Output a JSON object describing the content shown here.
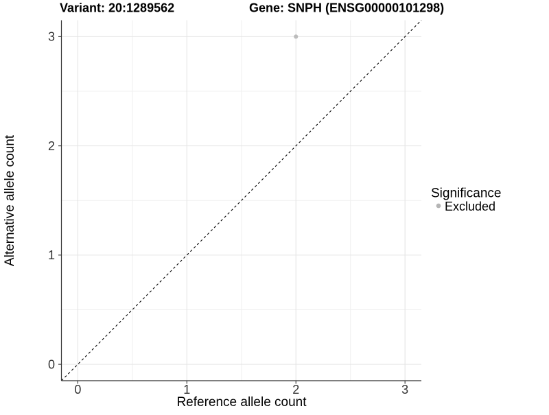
{
  "figure": {
    "title_left": "Variant: 20:1289562",
    "title_right": "Gene: SNPH (ENSG00000101298)"
  },
  "chart_data": {
    "type": "scatter",
    "title": "Variant: 20:1289562        Gene: SNPH (ENSG00000101298)",
    "xlabel": "Reference allele count",
    "ylabel": "Alternative allele count",
    "xlim": [
      -0.15,
      3.15
    ],
    "ylim": [
      -0.15,
      3.15
    ],
    "x_ticks": [
      0,
      1,
      2,
      3
    ],
    "y_ticks": [
      0,
      1,
      2,
      3
    ],
    "x_minor_ticks": [
      0.5,
      1.5,
      2.5
    ],
    "y_minor_ticks": [
      0.5,
      1.5,
      2.5
    ],
    "grid": "major and minor gridlines on white panel",
    "points": [
      {
        "x": 2,
        "y": 3,
        "significance": "Excluded"
      }
    ],
    "reference_line": {
      "type": "identity y=x across panel",
      "style": "dashed",
      "color": "#000000"
    },
    "legend": {
      "title": "Significance",
      "position": "right",
      "entries": [
        {
          "label": "Excluded",
          "marker": "circle",
          "color": "#b5b5b5"
        }
      ]
    },
    "colors": {
      "point": "#bcbcbc",
      "grid_major": "#e5e5e5",
      "grid_minor": "#f0f0f0",
      "axis_line": "#333333",
      "tick_label": "#333333",
      "background": "#ffffff"
    }
  }
}
